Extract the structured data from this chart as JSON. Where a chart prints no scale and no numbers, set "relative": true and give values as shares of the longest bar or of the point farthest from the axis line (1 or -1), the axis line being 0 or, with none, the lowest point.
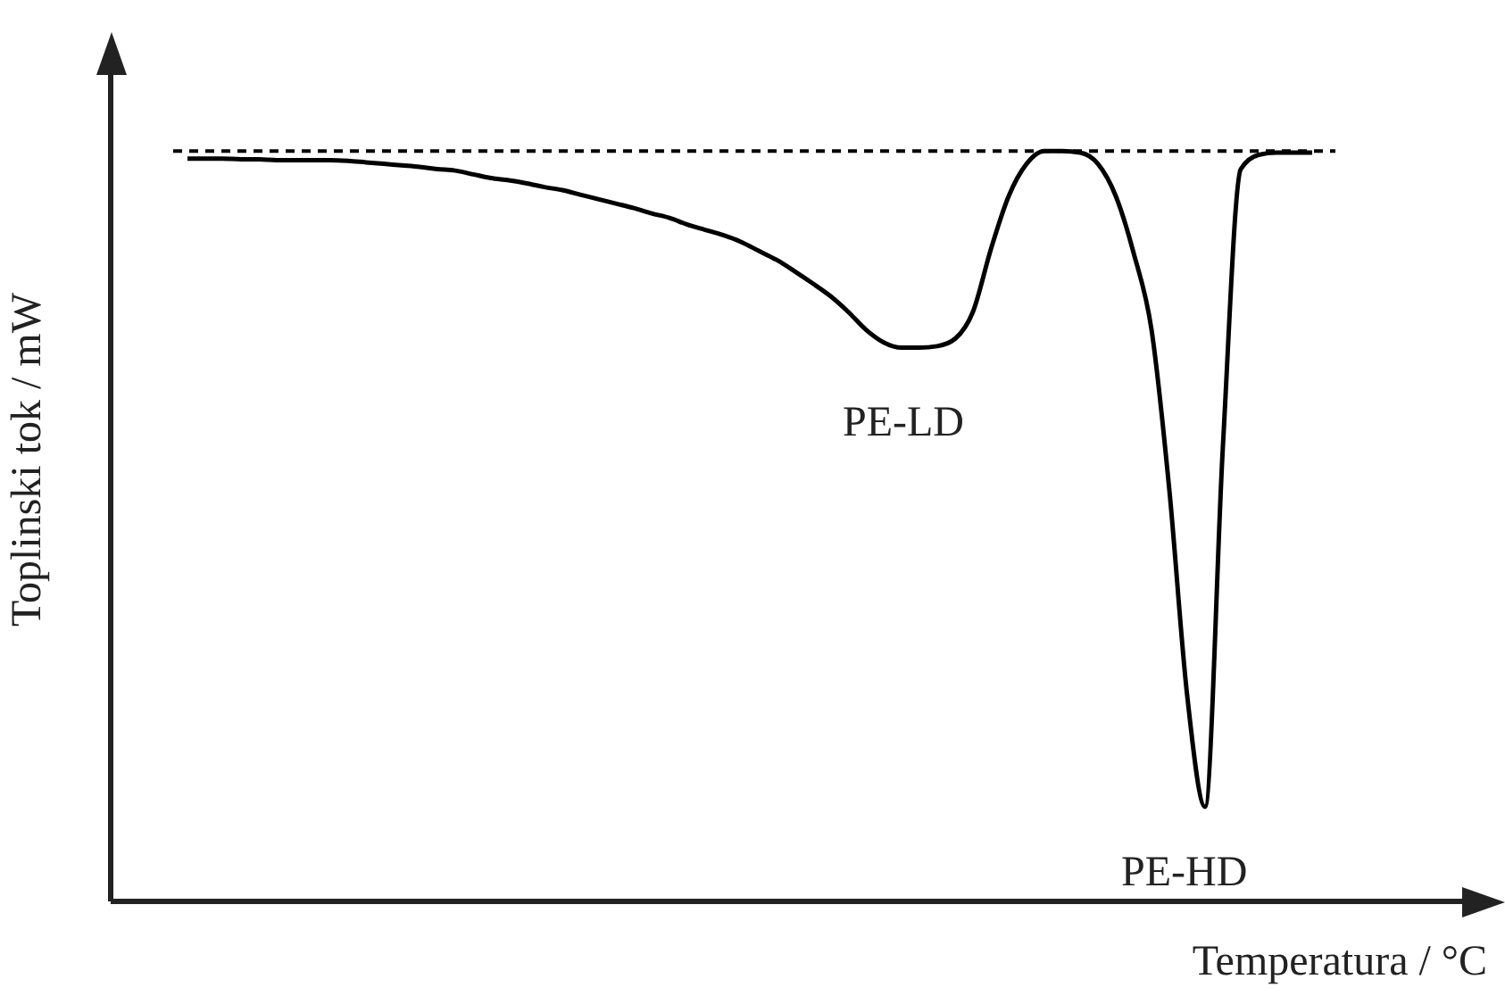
{
  "chart_data": {
    "type": "line",
    "relative": true,
    "xlabel": "Temperatura / °C",
    "ylabel": "Toplinski tok / mW",
    "categories": [
      null,
      null,
      null,
      null,
      null,
      null,
      null,
      null,
      null,
      null,
      null,
      null,
      null,
      null,
      null,
      null,
      null,
      null,
      null,
      null,
      null,
      null,
      null,
      null,
      null,
      null,
      null,
      null,
      null,
      null,
      null,
      null,
      null,
      null,
      null,
      null,
      null,
      null,
      null,
      null,
      null,
      null,
      null,
      null,
      null,
      null,
      null,
      null,
      null,
      null,
      null,
      null,
      null,
      null,
      null,
      null,
      null,
      null,
      null,
      null,
      null,
      null,
      null,
      null
    ],
    "series": [
      {
        "color": "#000000",
        "values": [
          0.99,
          0.99,
          0.99,
          0.989,
          0.989,
          0.988,
          0.988,
          0.988,
          0.988,
          0.987,
          0.985,
          0.983,
          0.981,
          0.979,
          0.976,
          0.974,
          0.969,
          0.964,
          0.961,
          0.957,
          0.952,
          0.948,
          0.942,
          0.936,
          0.93,
          0.924,
          0.917,
          0.911,
          0.902,
          0.895,
          0.888,
          0.879,
          0.867,
          0.855,
          0.84,
          0.824,
          0.807,
          0.786,
          0.762,
          0.745,
          0.738,
          0.738,
          0.74,
          0.75,
          0.786,
          0.869,
          0.94,
          0.983,
          1.0,
          1.0,
          0.998,
          0.983,
          0.94,
          0.864,
          0.762,
          0.548,
          0.274,
          0.126,
          0.607,
          0.976,
          0.995,
          0.998,
          0.998,
          0.998
        ]
      }
    ],
    "ref_lines": [
      {
        "axis": "y",
        "value": 1,
        "line_style": "dashed",
        "color": "#000000"
      }
    ],
    "annotations": [
      "PE-LD",
      "PE-HD"
    ],
    "grid": false,
    "legend": false,
    "marker": "none",
    "line_style": "solid"
  }
}
